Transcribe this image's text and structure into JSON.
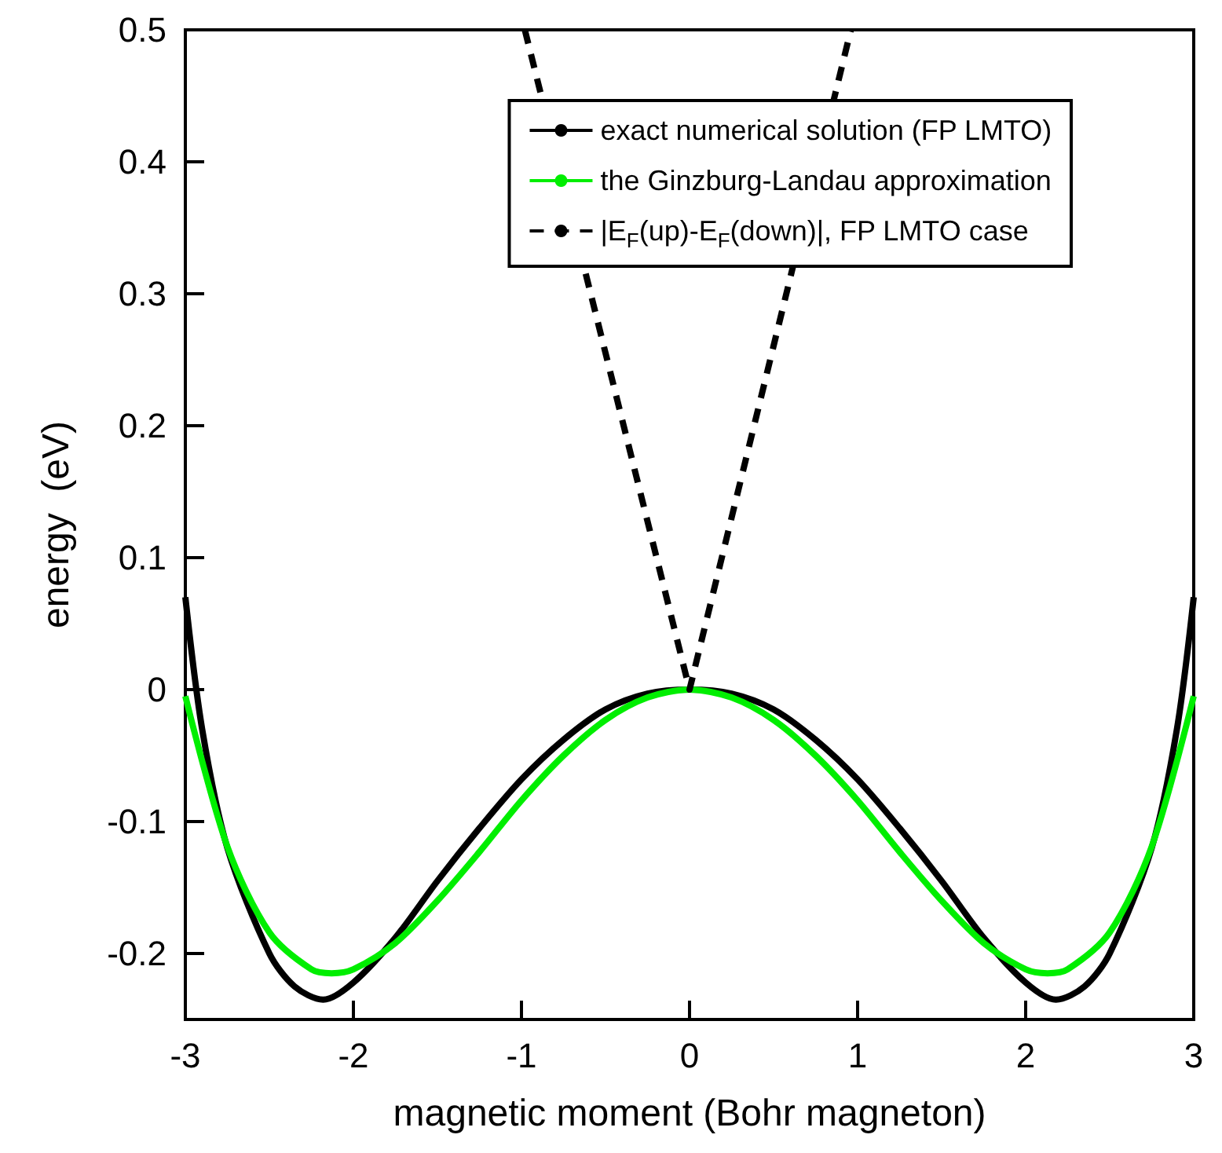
{
  "chart_data": {
    "type": "line",
    "xlabel": "magnetic moment (Bohr magneton)",
    "ylabel": "energy  (eV)",
    "xlim": [
      -3,
      3
    ],
    "xticks": [
      -3,
      -2,
      -1,
      0,
      1,
      2,
      3
    ],
    "ylim": [
      -0.25,
      0.5
    ],
    "yticks": [
      -0.2,
      -0.1,
      0,
      0.1,
      0.2,
      0.3,
      0.4,
      0.5
    ],
    "grid": false,
    "legend": "top right",
    "marker": "none",
    "series": [
      {
        "name": "exact numerical solution (FP LMTO)",
        "color": "#000000",
        "line_style": "solid",
        "x": [
          -3,
          -2.9,
          -2.75,
          -2.5,
          -2.35,
          -2.18,
          -2,
          -1.75,
          -1.5,
          -1.25,
          -1,
          -0.75,
          -0.5,
          -0.25,
          0,
          0.25,
          0.5,
          0.75,
          1,
          1.25,
          1.5,
          1.75,
          2,
          2.18,
          2.35,
          2.5,
          2.75,
          2.9,
          3
        ],
        "values": [
          0.07,
          -0.03,
          -0.12,
          -0.2,
          -0.225,
          -0.235,
          -0.222,
          -0.188,
          -0.145,
          -0.105,
          -0.068,
          -0.038,
          -0.015,
          -0.003,
          0,
          -0.003,
          -0.015,
          -0.038,
          -0.068,
          -0.105,
          -0.145,
          -0.188,
          -0.222,
          -0.235,
          -0.225,
          -0.2,
          -0.12,
          -0.03,
          0.07
        ]
      },
      {
        "name": "the Ginzburg-Landau approximation",
        "color": "#00ee00",
        "line_style": "solid",
        "x": [
          -3,
          -2.75,
          -2.5,
          -2.25,
          -2.13,
          -2,
          -1.75,
          -1.5,
          -1.25,
          -1,
          -0.75,
          -0.5,
          -0.25,
          0,
          0.25,
          0.5,
          0.75,
          1,
          1.25,
          1.5,
          1.75,
          2,
          2.13,
          2.25,
          2.5,
          2.75,
          3
        ],
        "values": [
          -0.005,
          -0.119,
          -0.184,
          -0.212,
          -0.215,
          -0.212,
          -0.192,
          -0.16,
          -0.123,
          -0.084,
          -0.05,
          -0.023,
          -0.006,
          0,
          -0.006,
          -0.023,
          -0.05,
          -0.084,
          -0.123,
          -0.16,
          -0.192,
          -0.212,
          -0.215,
          -0.212,
          -0.184,
          -0.119,
          -0.005
        ]
      },
      {
        "name": "|E$_{F}$(up)-E$_{F}$(down)|, FP LMTO case",
        "color": "#000000",
        "line_style": "dashed",
        "x": [
          -0.98,
          0,
          0.96
        ],
        "values": [
          0.5,
          0,
          0.5
        ]
      }
    ]
  }
}
